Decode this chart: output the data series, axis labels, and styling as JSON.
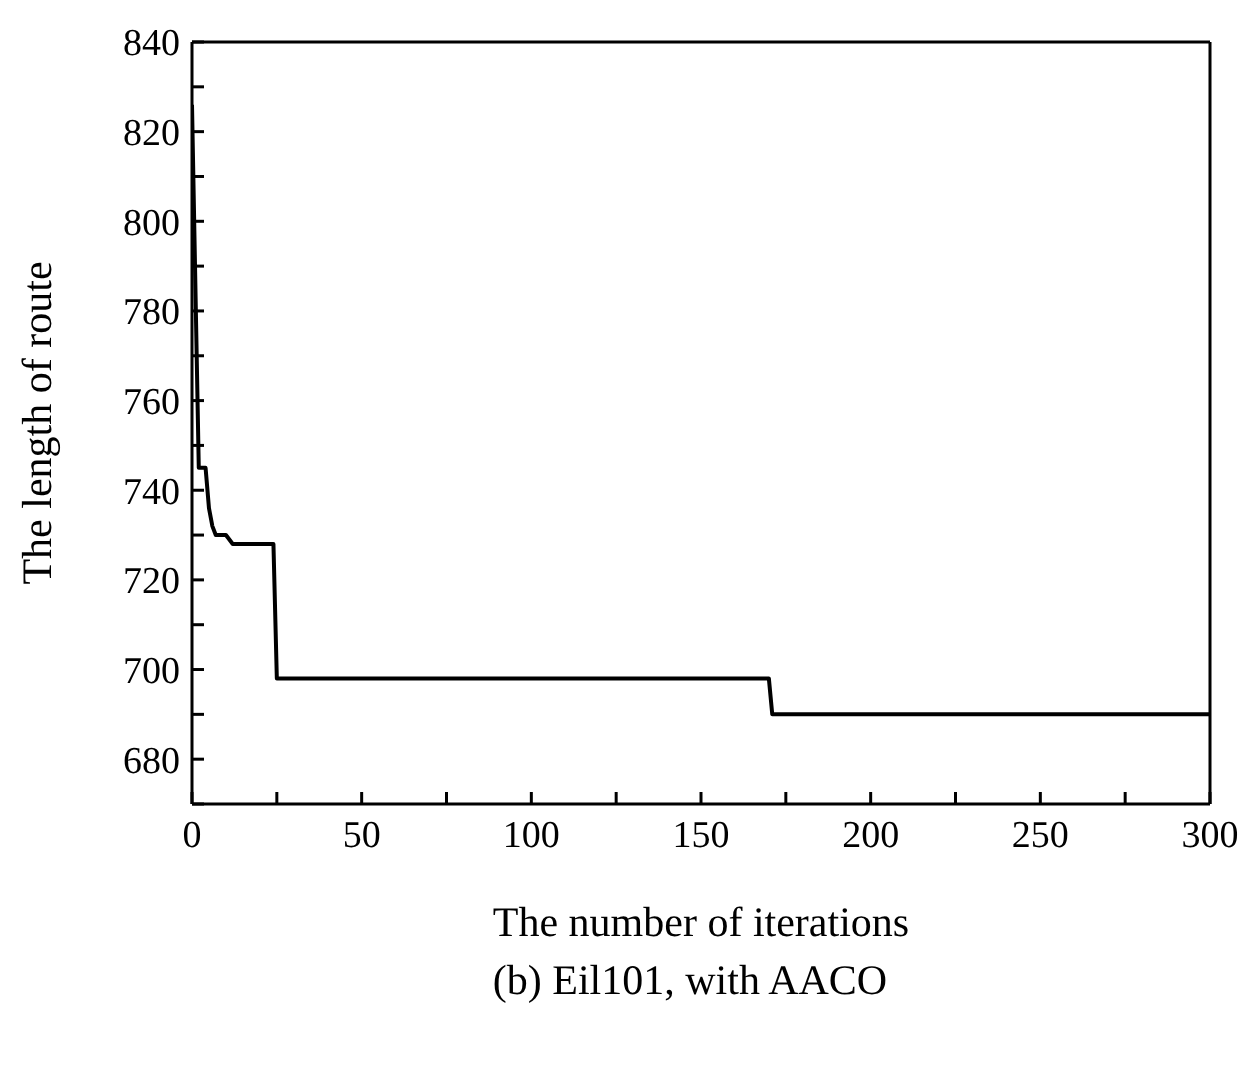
{
  "chart_data": {
    "type": "line",
    "xlabel": "The number of iterations",
    "ylabel": "The length of route",
    "annotations": [
      "(b) Eil101, with AACO"
    ],
    "x": [
      0,
      2,
      4,
      5,
      6,
      7,
      10,
      11,
      12,
      24,
      25,
      170,
      171,
      300
    ],
    "series": [
      {
        "color": "#000000",
        "values": [
          826,
          745,
          745,
          736,
          732,
          730,
          730,
          729,
          728,
          728,
          698,
          698,
          690,
          690
        ]
      }
    ],
    "xlim": [
      0,
      300
    ],
    "xticks": [
      0,
      {
        "value": 25,
        "label": null
      },
      50,
      {
        "value": 75,
        "label": null
      },
      100,
      {
        "value": 125,
        "label": null
      },
      150,
      {
        "value": 175,
        "label": null
      },
      200,
      {
        "value": 225,
        "label": null
      },
      250,
      {
        "value": 275,
        "label": null
      },
      300
    ],
    "ylim": [
      670,
      840
    ],
    "yticks": [
      {
        "value": 670,
        "label": null
      },
      680,
      {
        "value": 690,
        "label": null
      },
      700,
      {
        "value": 710,
        "label": null
      },
      720,
      {
        "value": 730,
        "label": null
      },
      740,
      {
        "value": 750,
        "label": null
      },
      760,
      {
        "value": 770,
        "label": null
      },
      780,
      {
        "value": 790,
        "label": null
      },
      800,
      {
        "value": 810,
        "label": null
      },
      820,
      {
        "value": 830,
        "label": null
      },
      840
    ],
    "grid": false,
    "legend": false,
    "marker": "none",
    "line_style": "solid"
  }
}
